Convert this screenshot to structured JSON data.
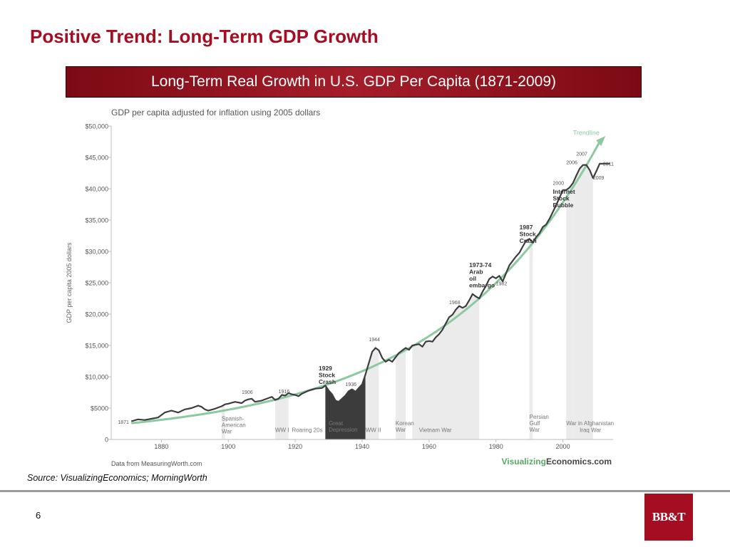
{
  "slide": {
    "title": "Positive Trend: Long-Term GDP Growth",
    "banner": "Long-Term Real Growth in U.S. GDP Per Capita (1871-2009)",
    "source": "Source: VisualizingEconomics; MorningWorth",
    "page_number": "6",
    "logo_text": "BB&T"
  },
  "colors": {
    "title": "#a50e22",
    "line": "#3d3d3d",
    "trendline": "#8cc9a0",
    "shade": "#ebebeb",
    "depression": "#3c3c3c"
  },
  "chart_data": {
    "type": "line",
    "title": "GDP per capita adjusted for inflation using 2005 dollars",
    "ylabel": "GDP per capita 2005 dollars",
    "xlabel": "",
    "xlim": [
      1865,
      2015
    ],
    "ylim": [
      0,
      50000
    ],
    "x_ticks": [
      1880,
      1900,
      1920,
      1940,
      1960,
      1980,
      2000
    ],
    "y_ticks": [
      {
        "value": 0,
        "label": "0"
      },
      {
        "value": 5000,
        "label": "$5000"
      },
      {
        "value": 10000,
        "label": "$10,000"
      },
      {
        "value": 15000,
        "label": "$15,000"
      },
      {
        "value": 20000,
        "label": "$20,000"
      },
      {
        "value": 25000,
        "label": "$25,000"
      },
      {
        "value": 30000,
        "label": "$30,000"
      },
      {
        "value": 35000,
        "label": "$35,000"
      },
      {
        "value": 40000,
        "label": "$40,000"
      },
      {
        "value": 45000,
        "label": "$45,000"
      },
      {
        "value": 50000,
        "label": "$50,000"
      }
    ],
    "grid": false,
    "series": [
      {
        "x": [
          1871,
          1873,
          1875,
          1877,
          1879,
          1881,
          1883,
          1885,
          1887,
          1889,
          1891,
          1892,
          1893,
          1894,
          1896,
          1898,
          1899,
          1900,
          1902,
          1904,
          1905,
          1906,
          1907,
          1908,
          1910,
          1912,
          1913,
          1914,
          1915,
          1916,
          1917,
          1918,
          1919,
          1920,
          1921,
          1922,
          1924,
          1926,
          1928,
          1929,
          1930,
          1931,
          1932,
          1933,
          1934,
          1935,
          1936,
          1937,
          1938,
          1939,
          1940,
          1941,
          1942,
          1943,
          1944,
          1945,
          1946,
          1947,
          1948,
          1949,
          1950,
          1951,
          1952,
          1953,
          1954,
          1955,
          1956,
          1957,
          1958,
          1959,
          1960,
          1961,
          1962,
          1963,
          1964,
          1965,
          1966,
          1967,
          1968,
          1969,
          1970,
          1971,
          1972,
          1973,
          1974,
          1975,
          1976,
          1977,
          1978,
          1979,
          1980,
          1981,
          1982,
          1983,
          1984,
          1985,
          1986,
          1987,
          1988,
          1989,
          1990,
          1991,
          1992,
          1993,
          1994,
          1995,
          1996,
          1997,
          1998,
          1999,
          2000,
          2001,
          2002,
          2003,
          2004,
          2005,
          2006,
          2007,
          2008,
          2009,
          2010,
          2011,
          2012,
          2013,
          2014
        ],
        "y": [
          2900,
          3200,
          3100,
          3300,
          3500,
          4300,
          4600,
          4300,
          4800,
          5000,
          5400,
          5200,
          4800,
          4600,
          4900,
          5300,
          5600,
          5700,
          6000,
          5800,
          6200,
          6400,
          6500,
          6000,
          6200,
          6600,
          6800,
          6300,
          6500,
          7100,
          7000,
          7400,
          7200,
          7100,
          6900,
          7300,
          7800,
          8100,
          8200,
          8600,
          7800,
          7200,
          6200,
          6000,
          6500,
          7000,
          7700,
          8000,
          7600,
          8200,
          8800,
          10400,
          12200,
          14000,
          14600,
          14200,
          13000,
          12400,
          12700,
          12400,
          13100,
          13800,
          14200,
          14600,
          14300,
          15000,
          15100,
          15200,
          14800,
          15600,
          15700,
          15600,
          16300,
          16800,
          17500,
          18500,
          19500,
          19900,
          20700,
          21300,
          21000,
          21300,
          22200,
          23200,
          22800,
          22500,
          23600,
          24500,
          25600,
          26000,
          25700,
          26100,
          25200,
          26500,
          27800,
          28500,
          29200,
          29800,
          30800,
          31700,
          32000,
          31400,
          32300,
          32900,
          33900,
          34300,
          35200,
          36300,
          37400,
          38600,
          39800,
          39800,
          40200,
          40900,
          42100,
          43200,
          43800,
          43800,
          43000,
          41700,
          42800,
          44000,
          44000,
          44000,
          44000
        ]
      }
    ],
    "trendline_label": "Trendline",
    "shaded_periods": [
      {
        "start": 1898,
        "end": 1899,
        "style": "light"
      },
      {
        "start": 1914,
        "end": 1918,
        "style": "light"
      },
      {
        "start": 1929,
        "end": 1941,
        "style": "dark"
      },
      {
        "start": 1941,
        "end": 1945,
        "style": "light"
      },
      {
        "start": 1950,
        "end": 1953,
        "style": "light"
      },
      {
        "start": 1955,
        "end": 1975,
        "style": "light"
      },
      {
        "start": 1990,
        "end": 1991,
        "style": "light"
      },
      {
        "start": 2001,
        "end": 2003,
        "style": "light"
      },
      {
        "start": 2003,
        "end": 2009,
        "style": "light"
      }
    ],
    "period_labels": [
      {
        "lines": [
          "Spanish-",
          "American",
          "War"
        ],
        "x": 1898,
        "y": 3000
      },
      {
        "lines": [
          "WW I"
        ],
        "x": 1914,
        "y": 1200
      },
      {
        "lines": [
          "Roaring 20s"
        ],
        "x": 1919,
        "y": 1200
      },
      {
        "lines": [
          "Great",
          "Depression"
        ],
        "x": 1930,
        "y": 2300
      },
      {
        "lines": [
          "WW II"
        ],
        "x": 1941,
        "y": 1200
      },
      {
        "lines": [
          "Korean",
          "War"
        ],
        "x": 1950,
        "y": 2300
      },
      {
        "lines": [
          "Vietnam War"
        ],
        "x": 1957,
        "y": 1200
      },
      {
        "lines": [
          "Persian",
          "Gulf",
          "War"
        ],
        "x": 1990,
        "y": 3300
      },
      {
        "lines": [
          "War in Afghanistan"
        ],
        "x": 2001,
        "y": 2300
      },
      {
        "lines": [
          "Iraq War"
        ],
        "x": 2005,
        "y": 1200
      }
    ],
    "year_labels": [
      {
        "text": "1871",
        "x": 1867,
        "y": 2500
      },
      {
        "text": "1906",
        "x": 1904,
        "y": 7300
      },
      {
        "text": "1916",
        "x": 1915,
        "y": 7400
      },
      {
        "text": "1936",
        "x": 1935,
        "y": 8500
      },
      {
        "text": "1944",
        "x": 1942,
        "y": 15700
      },
      {
        "text": "1968",
        "x": 1966,
        "y": 21600
      },
      {
        "text": "1982",
        "x": 1980,
        "y": 24600
      },
      {
        "text": "2000",
        "x": 1997,
        "y": 40600
      },
      {
        "text": "2006",
        "x": 2001,
        "y": 43900
      },
      {
        "text": "2007",
        "x": 2004,
        "y": 45300
      },
      {
        "text": "2009",
        "x": 2009,
        "y": 41500
      },
      {
        "text": "2011",
        "x": 2012,
        "y": 43700
      }
    ],
    "event_labels": [
      {
        "lines": [
          "1929",
          "Stock",
          "Crash"
        ],
        "x": 1927,
        "y": 11000
      },
      {
        "lines": [
          "1973-74",
          "Arab",
          "oil",
          "embargo"
        ],
        "x": 1972,
        "y": 27500
      },
      {
        "lines": [
          "1987",
          "Stock",
          "Crash"
        ],
        "x": 1987,
        "y": 33500
      },
      {
        "lines": [
          "Internet",
          "Stock",
          "Bubble"
        ],
        "x": 1997,
        "y": 39200
      }
    ],
    "notes": {
      "data_credit": "Data from MeasuringWorth.com",
      "brand_a": "Visualizing",
      "brand_b": "Economics.com"
    }
  }
}
